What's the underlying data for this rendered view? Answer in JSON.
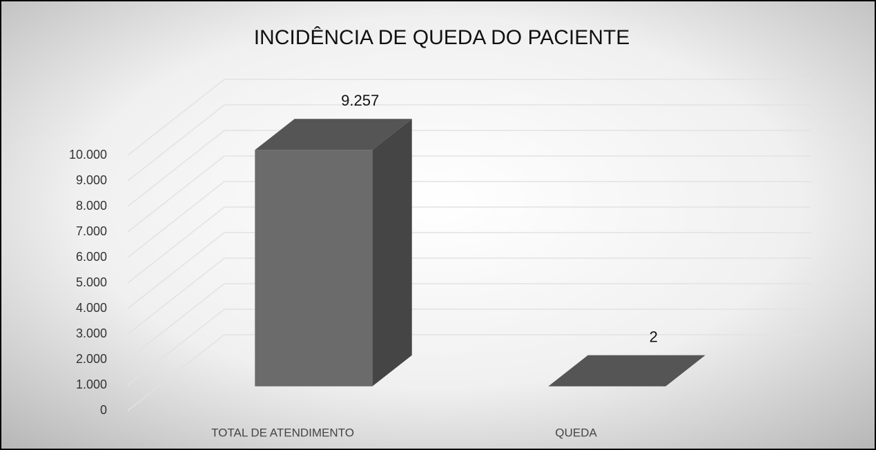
{
  "chart_data": {
    "type": "bar3d",
    "title": "INCIDÊNCIA DE QUEDA DO PACIENTE",
    "categories": [
      "TOTAL DE ATENDIMENTO",
      "QUEDA"
    ],
    "values": [
      9257,
      2
    ],
    "value_labels": [
      "9.257",
      "2"
    ],
    "color": "#6b6b6b",
    "ylim": [
      0,
      10000
    ],
    "yticks": [
      0,
      {
        "value": 1000,
        "label": "1.000"
      },
      {
        "value": 2000,
        "label": "2.000"
      },
      {
        "value": 3000,
        "label": "3.000"
      },
      {
        "value": 4000,
        "label": "4.000"
      },
      {
        "value": 5000,
        "label": "5.000"
      },
      {
        "value": 6000,
        "label": "6.000"
      },
      {
        "value": 7000,
        "label": "7.000"
      },
      {
        "value": 8000,
        "label": "8.000"
      },
      {
        "value": 9000,
        "label": "9.000"
      },
      {
        "value": 10000,
        "label": "10.000"
      }
    ],
    "grid": true
  }
}
